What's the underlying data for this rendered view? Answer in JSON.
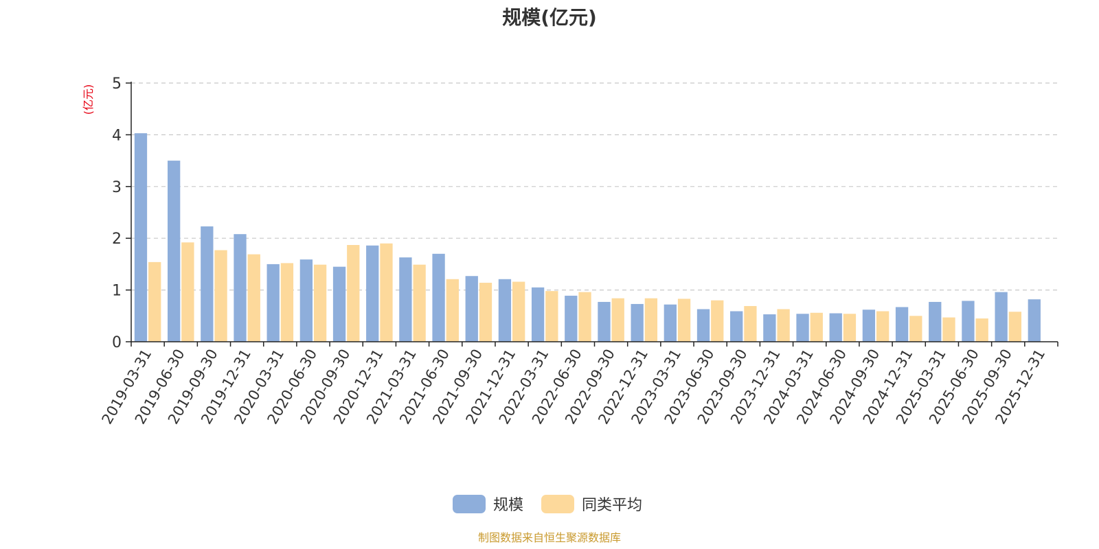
{
  "colors": {
    "scale": "#8eaedb",
    "peer_avg": "#fdd99b",
    "axis": "#222222",
    "grid": "#c8c8c8",
    "tick_text": "#333333",
    "unit_text": "#e60012",
    "source_text": "#c99a2e"
  },
  "source_note": "制图数据来自恒生聚源数据库",
  "chart_data": {
    "type": "bar",
    "title": "规模(亿元)",
    "ylabel": "(亿元)",
    "xlabel": "",
    "ylim": [
      0,
      5
    ],
    "yticks": [
      0,
      1,
      2,
      3,
      4,
      5
    ],
    "grid": true,
    "legend_position": "bottom-center",
    "categories": [
      "2019-03-31",
      "2019-06-30",
      "2019-09-30",
      "2019-12-31",
      "2020-03-31",
      "2020-06-30",
      "2020-09-30",
      "2020-12-31",
      "2021-03-31",
      "2021-06-30",
      "2021-09-30",
      "2021-12-31",
      "2022-03-31",
      "2022-06-30",
      "2022-09-30",
      "2022-12-31",
      "2023-03-31",
      "2023-06-30",
      "2023-09-30",
      "2023-12-31",
      "2024-03-31",
      "2024-06-30",
      "2024-09-30",
      "2024-12-31",
      "2025-03-31",
      "2025-06-30",
      "2025-09-30",
      "2025-12-31"
    ],
    "series": [
      {
        "name": "规模",
        "values": [
          4.03,
          3.5,
          2.23,
          2.08,
          1.5,
          1.59,
          1.45,
          1.86,
          1.63,
          1.7,
          1.27,
          1.21,
          1.05,
          0.89,
          0.77,
          0.73,
          0.72,
          0.63,
          0.59,
          0.53,
          0.54,
          0.55,
          0.62,
          0.67,
          0.77,
          0.79,
          0.96,
          0.82
        ]
      },
      {
        "name": "同类平均",
        "values": [
          1.54,
          1.92,
          1.77,
          1.69,
          1.52,
          1.49,
          1.87,
          1.9,
          1.49,
          1.21,
          1.14,
          1.16,
          0.98,
          0.96,
          0.84,
          0.84,
          0.83,
          0.8,
          0.69,
          0.63,
          0.56,
          0.54,
          0.59,
          0.5,
          0.47,
          0.45,
          0.58,
          null
        ]
      }
    ]
  }
}
